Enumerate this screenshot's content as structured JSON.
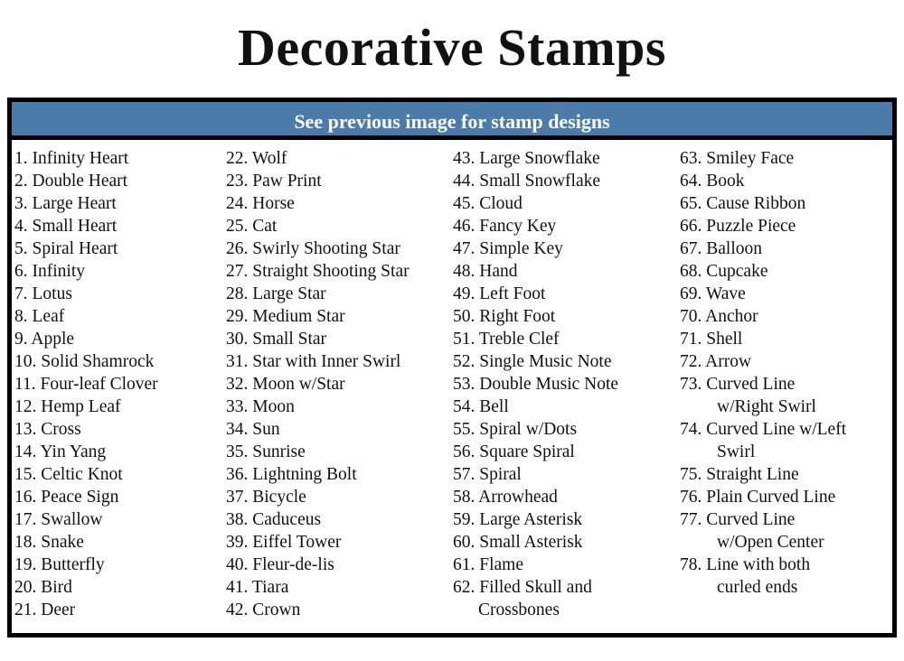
{
  "title": "Decorative Stamps",
  "banner": "See previous image for stamp designs",
  "columns": [
    [
      {
        "text": "1. Infinity Heart"
      },
      {
        "text": "2. Double Heart"
      },
      {
        "text": "3. Large Heart"
      },
      {
        "text": "4. Small Heart"
      },
      {
        "text": "5. Spiral Heart"
      },
      {
        "text": "6. Infinity"
      },
      {
        "text": "7. Lotus"
      },
      {
        "text": "8. Leaf"
      },
      {
        "text": "9. Apple"
      },
      {
        "text": "10. Solid Shamrock"
      },
      {
        "text": "11. Four-leaf Clover"
      },
      {
        "text": "12. Hemp Leaf"
      },
      {
        "text": "13. Cross"
      },
      {
        "text": "14. Yin Yang"
      },
      {
        "text": "15. Celtic Knot"
      },
      {
        "text": "16. Peace Sign"
      },
      {
        "text": "17. Swallow"
      },
      {
        "text": "18. Snake"
      },
      {
        "text": "19. Butterfly"
      },
      {
        "text": "20. Bird"
      },
      {
        "text": "21. Deer"
      }
    ],
    [
      {
        "text": "22. Wolf"
      },
      {
        "text": "23. Paw Print"
      },
      {
        "text": "24. Horse"
      },
      {
        "text": "25. Cat"
      },
      {
        "text": "26. Swirly Shooting Star"
      },
      {
        "text": "27. Straight Shooting Star"
      },
      {
        "text": "28. Large Star"
      },
      {
        "text": "29. Medium Star"
      },
      {
        "text": "30. Small Star"
      },
      {
        "text": "31. Star with Inner Swirl"
      },
      {
        "text": "32. Moon w/Star"
      },
      {
        "text": "33. Moon"
      },
      {
        "text": "34. Sun"
      },
      {
        "text": "35. Sunrise"
      },
      {
        "text": "36. Lightning Bolt"
      },
      {
        "text": "37. Bicycle"
      },
      {
        "text": "38. Caduceus"
      },
      {
        "text": "39. Eiffel Tower"
      },
      {
        "text": "40. Fleur-de-lis"
      },
      {
        "text": "41. Tiara"
      },
      {
        "text": "42. Crown"
      }
    ],
    [
      {
        "text": "43. Large Snowflake"
      },
      {
        "text": "44. Small Snowflake"
      },
      {
        "text": "45. Cloud"
      },
      {
        "text": "46. Fancy Key"
      },
      {
        "text": "47. Simple Key"
      },
      {
        "text": "48. Hand"
      },
      {
        "text": "49. Left Foot"
      },
      {
        "text": "50. Right Foot"
      },
      {
        "text": "51. Treble Clef"
      },
      {
        "text": "52. Single Music Note"
      },
      {
        "text": "53. Double Music Note"
      },
      {
        "text": "54. Bell"
      },
      {
        "text": "55. Spiral w/Dots"
      },
      {
        "text": "56. Square Spiral"
      },
      {
        "text": "57. Spiral"
      },
      {
        "text": "58. Arrowhead"
      },
      {
        "text": "59. Large Asterisk"
      },
      {
        "text": "60. Small Asterisk"
      },
      {
        "text": "61. Flame"
      },
      {
        "text": "62. Filled Skull and",
        "cont": "Crossbones"
      }
    ],
    [
      {
        "text": "63. Smiley Face"
      },
      {
        "text": "64. Book"
      },
      {
        "text": "65. Cause Ribbon"
      },
      {
        "text": "66. Puzzle Piece"
      },
      {
        "text": "67. Balloon"
      },
      {
        "text": "68. Cupcake"
      },
      {
        "text": "69. Wave"
      },
      {
        "text": "70. Anchor"
      },
      {
        "text": "71. Shell"
      },
      {
        "text": "72. Arrow"
      },
      {
        "text": "73. Curved Line",
        "cont": "w/Right Swirl"
      },
      {
        "text": "74. Curved Line w/Left",
        "cont": "Swirl"
      },
      {
        "text": "75. Straight Line"
      },
      {
        "text": "76. Plain Curved Line"
      },
      {
        "text": "77. Curved Line",
        "cont": "w/Open  Center"
      },
      {
        "text": "78. Line with both",
        "cont": "curled ends"
      }
    ]
  ],
  "colors": {
    "banner": "#4b7ba8",
    "border": "#000000"
  }
}
